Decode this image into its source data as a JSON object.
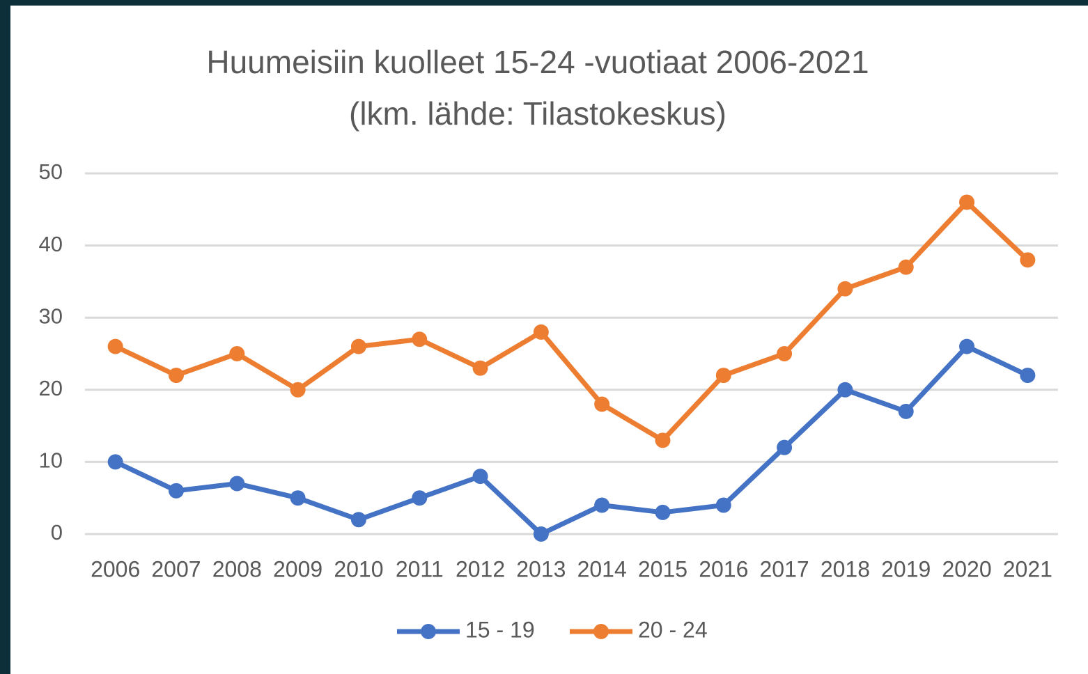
{
  "chart_data": {
    "type": "line",
    "title": "Huumeisiin kuolleet 15-24 -vuotiaat 2006-2021",
    "subtitle": "(lkm. lähde: Tilastokeskus)",
    "categories": [
      "2006",
      "2007",
      "2008",
      "2009",
      "2010",
      "2011",
      "2012",
      "2013",
      "2014",
      "2015",
      "2016",
      "2017",
      "2018",
      "2019",
      "2020",
      "2021"
    ],
    "series": [
      {
        "name": "15 - 19",
        "color": "#4472c4",
        "values": [
          10,
          6,
          7,
          5,
          2,
          5,
          8,
          0,
          4,
          3,
          4,
          12,
          20,
          17,
          26,
          22
        ]
      },
      {
        "name": "20 - 24",
        "color": "#ed7d31",
        "values": [
          26,
          22,
          25,
          20,
          26,
          27,
          23,
          28,
          18,
          13,
          22,
          25,
          34,
          37,
          46,
          38
        ]
      }
    ],
    "ylim": [
      0,
      50
    ],
    "yticks": [
      0,
      10,
      20,
      30,
      40,
      50
    ],
    "grid": true,
    "legend": "bottom"
  }
}
